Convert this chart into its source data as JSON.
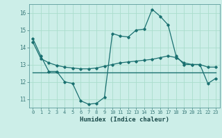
{
  "xlabel": "Humidex (Indice chaleur)",
  "xlim": [
    -0.5,
    23.5
  ],
  "ylim": [
    10.5,
    16.5
  ],
  "yticks": [
    11,
    12,
    13,
    14,
    15,
    16
  ],
  "xticks": [
    0,
    1,
    2,
    3,
    4,
    5,
    6,
    7,
    8,
    9,
    10,
    11,
    12,
    13,
    14,
    15,
    16,
    17,
    18,
    19,
    20,
    21,
    22,
    23
  ],
  "background_color": "#cceee8",
  "grid_color": "#aaddcc",
  "line_color": "#1a7070",
  "line1_x": [
    0,
    1,
    2,
    3,
    4,
    5,
    6,
    7,
    8,
    9,
    10,
    11,
    12,
    13,
    14,
    15,
    16,
    17,
    18,
    19,
    20,
    21,
    22,
    23
  ],
  "line1_y": [
    14.5,
    13.5,
    12.6,
    12.6,
    12.0,
    11.9,
    10.9,
    10.7,
    10.75,
    11.1,
    14.8,
    14.65,
    14.6,
    15.0,
    15.05,
    16.2,
    15.8,
    15.3,
    13.5,
    13.0,
    13.0,
    13.0,
    11.9,
    12.2
  ],
  "line2_x": [
    0,
    1,
    2,
    3,
    4,
    5,
    6,
    7,
    8,
    9,
    10,
    11,
    12,
    13,
    14,
    15,
    16,
    17,
    18,
    19,
    20,
    21,
    22,
    23
  ],
  "line2_y": [
    14.3,
    13.35,
    13.1,
    12.95,
    12.85,
    12.8,
    12.75,
    12.75,
    12.8,
    12.9,
    13.0,
    13.1,
    13.15,
    13.2,
    13.25,
    13.3,
    13.4,
    13.5,
    13.4,
    13.1,
    13.0,
    13.0,
    12.85,
    12.85
  ],
  "line3_x": [
    0,
    23
  ],
  "line3_y": [
    12.55,
    12.55
  ]
}
